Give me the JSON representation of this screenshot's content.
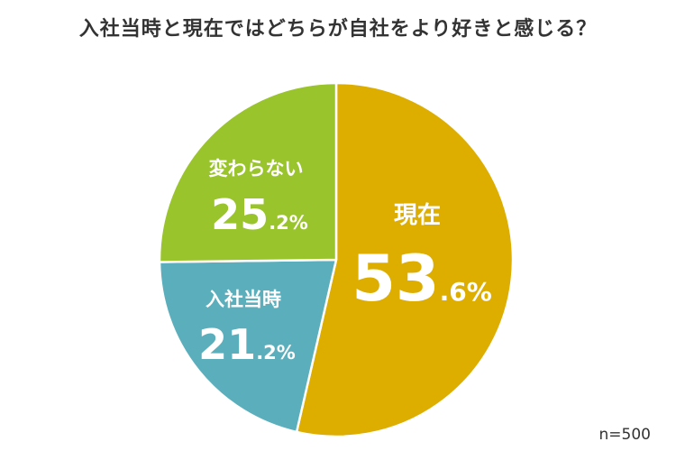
{
  "chart_data": {
    "type": "pie",
    "title": "入社当時と現在ではどちらが自社をより好きと感じる？",
    "slices": [
      {
        "label": "現在",
        "value": 53.6,
        "value_int": "53",
        "value_frac": ".6%",
        "color": "#DDAE00"
      },
      {
        "label": "入社当時",
        "value": 21.2,
        "value_int": "21",
        "value_frac": ".2%",
        "color": "#5BAFBC"
      },
      {
        "label": "変わらない",
        "value": 25.2,
        "value_int": "25",
        "value_frac": ".2%",
        "color": "#9AC42C"
      }
    ],
    "start": "12 o'clock",
    "direction": "clockwise",
    "note": "n=500"
  }
}
